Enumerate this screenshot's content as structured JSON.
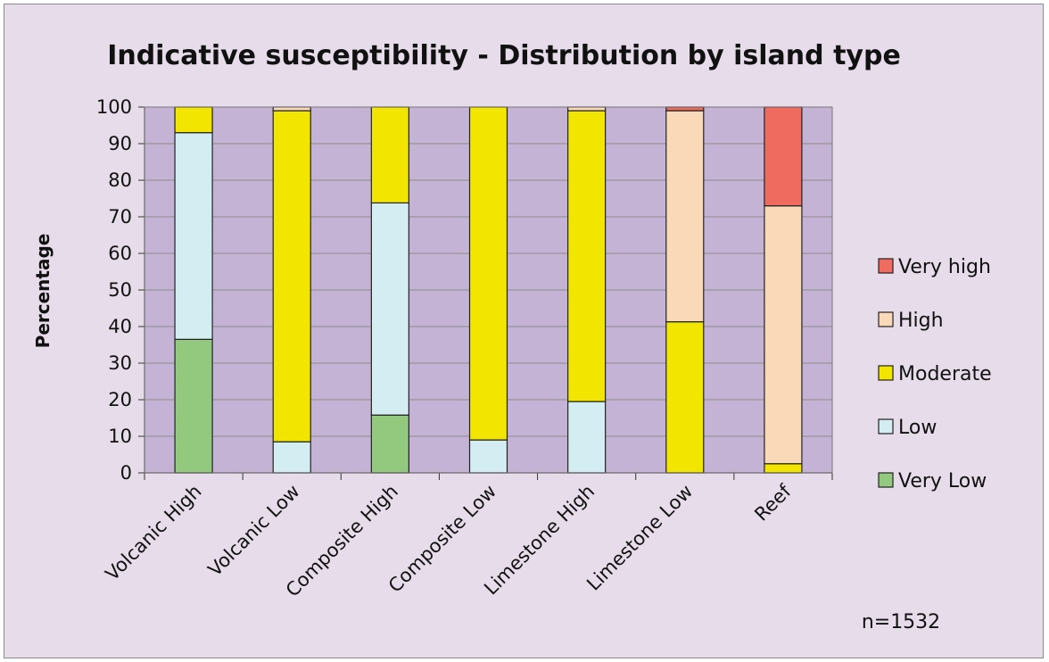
{
  "chart_data": {
    "type": "bar",
    "stacked": true,
    "title": "Indicative susceptibility - Distribution by island type",
    "ylabel": "Percentage",
    "xlabel": "",
    "ylim": [
      0,
      100
    ],
    "yticks": [
      0,
      10,
      20,
      30,
      40,
      50,
      60,
      70,
      80,
      90,
      100
    ],
    "grid": true,
    "legend_position": "right",
    "categories": [
      "Volcanic High",
      "Volcanic Low",
      "Composite High",
      "Composite Low",
      "Limestone High",
      "Limestone Low",
      "Reef"
    ],
    "series": [
      {
        "name": "Very Low",
        "color": "#92c97e",
        "values": [
          36.5,
          0,
          15.8,
          0,
          0,
          0,
          0
        ]
      },
      {
        "name": "Low",
        "color": "#d3edf3",
        "values": [
          56.5,
          8.5,
          58,
          9,
          19.5,
          0,
          0
        ]
      },
      {
        "name": "Moderate",
        "color": "#f2e600",
        "values": [
          7,
          90.5,
          26.2,
          91,
          79.5,
          41.3,
          2.5
        ]
      },
      {
        "name": "High",
        "color": "#fad9b8",
        "values": [
          0,
          1,
          0,
          0,
          1,
          57.7,
          70.5
        ]
      },
      {
        "name": "Very high",
        "color": "#ef6b60",
        "values": [
          0,
          0,
          0,
          0,
          0,
          1,
          27
        ]
      }
    ],
    "annotation": "n=1532",
    "plot_background": "#c4b3d4"
  }
}
